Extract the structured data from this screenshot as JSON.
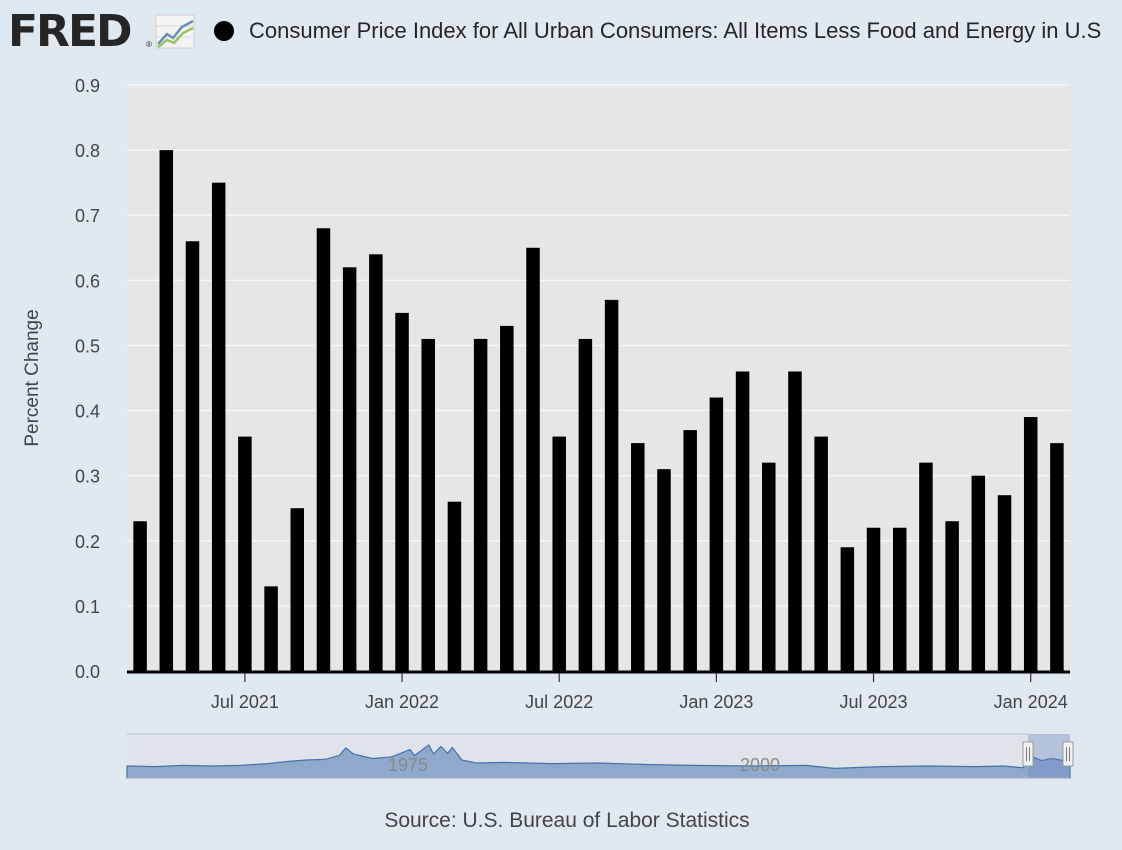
{
  "header": {
    "logo_text": "FRED",
    "logo_mark": "®",
    "chart_icon": "line-chart-icon",
    "series_label": "Consumer Price Index for All Urban Consumers: All Items Less Food and Energy in U.S"
  },
  "source": "Source: U.S. Bureau of Labor Statistics",
  "navigator": {
    "labels": [
      "1975",
      "2000"
    ]
  },
  "colors": {
    "background": "#e1e9f0",
    "plot": "#e6e6e6",
    "bar": "#000000",
    "navigator": "#4572a7"
  },
  "chart_data": {
    "type": "bar",
    "ylabel": "Percent Change",
    "ylim": [
      0,
      0.9
    ],
    "yticks": [
      "0.0",
      "0.1",
      "0.2",
      "0.3",
      "0.4",
      "0.5",
      "0.6",
      "0.7",
      "0.8",
      "0.9"
    ],
    "xticks": [
      {
        "label": "Jul 2021",
        "date": "2021-07"
      },
      {
        "label": "Jan 2022",
        "date": "2022-01"
      },
      {
        "label": "Jul 2022",
        "date": "2022-07"
      },
      {
        "label": "Jan 2023",
        "date": "2023-01"
      },
      {
        "label": "Jul 2023",
        "date": "2023-07"
      },
      {
        "label": "Jan 2024",
        "date": "2024-01"
      }
    ],
    "legend": "top",
    "grid": true,
    "series": [
      {
        "name": "Consumer Price Index for All Urban Consumers: All Items Less Food and Energy in U.S",
        "x": [
          "2021-03",
          "2021-04",
          "2021-05",
          "2021-06",
          "2021-07",
          "2021-08",
          "2021-09",
          "2021-10",
          "2021-11",
          "2021-12",
          "2022-01",
          "2022-02",
          "2022-03",
          "2022-04",
          "2022-05",
          "2022-06",
          "2022-07",
          "2022-08",
          "2022-09",
          "2022-10",
          "2022-11",
          "2022-12",
          "2023-01",
          "2023-02",
          "2023-03",
          "2023-04",
          "2023-05",
          "2023-06",
          "2023-07",
          "2023-08",
          "2023-09",
          "2023-10",
          "2023-11",
          "2023-12",
          "2024-01",
          "2024-02"
        ],
        "values": [
          0.23,
          0.8,
          0.66,
          0.75,
          0.36,
          0.13,
          0.25,
          0.68,
          0.62,
          0.64,
          0.55,
          0.51,
          0.26,
          0.51,
          0.53,
          0.65,
          0.36,
          0.51,
          0.57,
          0.35,
          0.31,
          0.37,
          0.42,
          0.46,
          0.32,
          0.46,
          0.36,
          0.19,
          0.22,
          0.22,
          0.32,
          0.23,
          0.3,
          0.27,
          0.39,
          0.35
        ]
      }
    ]
  }
}
